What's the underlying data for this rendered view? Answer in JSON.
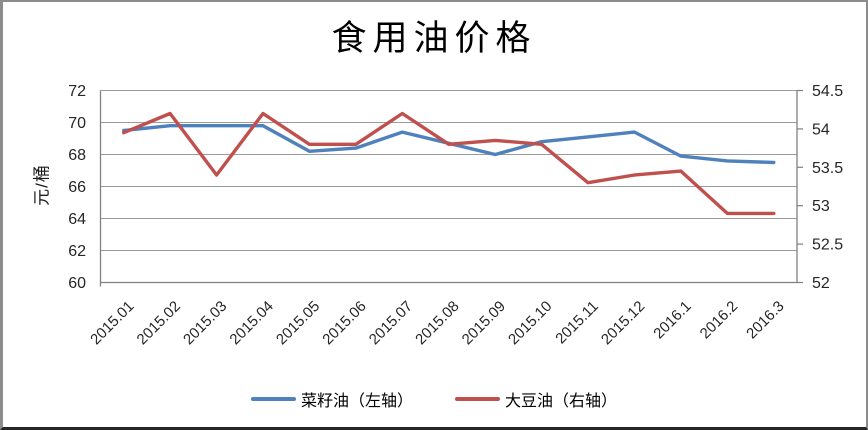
{
  "title": "食用油价格",
  "y_axis_label": "元/桶",
  "colors": {
    "rapeseed_line": "#4F81BD",
    "soybean_line": "#C0504D",
    "gridline": "#9b9b9b",
    "axis": "#808080",
    "tick_text": "#262626"
  },
  "chart_data": {
    "type": "line",
    "title": "食用油价格",
    "ylabel_left": "元/桶",
    "grid": "horizontal",
    "legend_position": "bottom",
    "categories": [
      "2015.01",
      "2015.02",
      "2015.03",
      "2015.04",
      "2015.05",
      "2015.06",
      "2015.07",
      "2015.08",
      "2015.09",
      "2015.10",
      "2015.11",
      "2015.12",
      "2016.1",
      "2016.2",
      "2016.3"
    ],
    "series": [
      {
        "name": "菜籽油（左轴）",
        "axis": "left",
        "color": "#4F81BD",
        "values": [
          69.5,
          69.8,
          69.8,
          69.8,
          68.2,
          68.4,
          69.4,
          68.7,
          68.0,
          68.8,
          69.1,
          69.4,
          67.9,
          67.6,
          67.5
        ]
      },
      {
        "name": "大豆油（右轴）",
        "axis": "right",
        "color": "#C0504D",
        "values": [
          53.95,
          54.2,
          53.4,
          54.2,
          53.8,
          53.8,
          54.2,
          53.8,
          53.85,
          53.8,
          53.3,
          53.4,
          53.45,
          52.9,
          52.9
        ]
      }
    ],
    "left_axis": {
      "min": 60,
      "max": 72,
      "ticks": [
        72,
        70,
        68,
        66,
        64,
        62,
        60
      ]
    },
    "right_axis": {
      "min": 52,
      "max": 54.5,
      "ticks": [
        54.5,
        54,
        53.5,
        53,
        52.5,
        52
      ]
    }
  }
}
